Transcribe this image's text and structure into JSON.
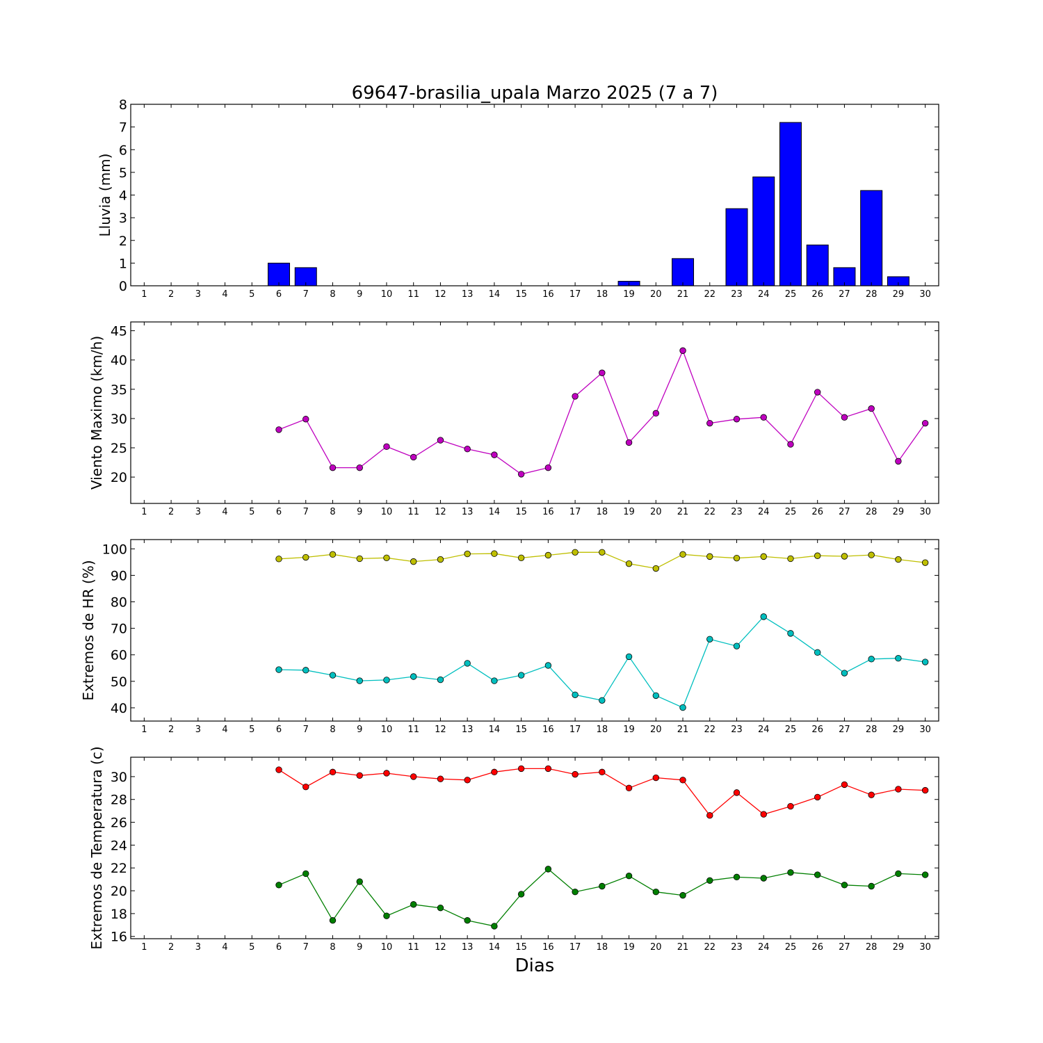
{
  "title": "69647-brasilia_upala Marzo 2025  (7 a 7)",
  "xlabel": "Dias",
  "days": [
    1,
    2,
    3,
    4,
    5,
    6,
    7,
    8,
    9,
    10,
    11,
    12,
    13,
    14,
    15,
    16,
    17,
    18,
    19,
    20,
    21,
    22,
    23,
    24,
    25,
    26,
    27,
    28,
    29,
    30
  ],
  "chart_data": [
    {
      "type": "bar",
      "ylabel": "Lluvia (mm)",
      "ylim": [
        0,
        8
      ],
      "yticks": [
        0,
        1,
        2,
        3,
        4,
        5,
        6,
        7,
        8
      ],
      "colors": {
        "bar": "#0000ff"
      },
      "series": [
        {
          "values": [
            null,
            null,
            null,
            null,
            null,
            1.0,
            0.8,
            0,
            0,
            0,
            0,
            0,
            0,
            0,
            0,
            0,
            0,
            0,
            0.2,
            0,
            1.2,
            0,
            3.4,
            4.8,
            7.2,
            1.8,
            0.8,
            4.2,
            0.4,
            null
          ]
        }
      ]
    },
    {
      "type": "line",
      "ylabel": "Viento Maximo (km/h)",
      "ylim": [
        15.5,
        46.5
      ],
      "yticks": [
        20,
        25,
        30,
        35,
        40,
        45
      ],
      "series": [
        {
          "color": "#bf00bf",
          "values": [
            null,
            null,
            null,
            null,
            null,
            28.1,
            29.9,
            21.6,
            21.6,
            25.2,
            23.4,
            26.3,
            24.8,
            23.8,
            20.5,
            21.6,
            33.8,
            37.8,
            25.9,
            30.9,
            41.6,
            29.2,
            29.9,
            30.2,
            25.6,
            34.5,
            30.2,
            31.7,
            22.7,
            29.2
          ]
        }
      ]
    },
    {
      "type": "line",
      "ylabel": "Extremos de HR (%)",
      "ylim": [
        35,
        103.5
      ],
      "yticks": [
        40,
        50,
        60,
        70,
        80,
        90,
        100
      ],
      "series": [
        {
          "color": "#bfbf00",
          "values": [
            null,
            null,
            null,
            null,
            null,
            96.2,
            96.8,
            97.9,
            96.3,
            96.6,
            95.2,
            96.0,
            98.1,
            98.2,
            96.6,
            97.6,
            98.7,
            98.7,
            94.4,
            92.6,
            97.9,
            97.1,
            96.5,
            97.1,
            96.3,
            97.4,
            97.2,
            97.7,
            96.0,
            94.8
          ]
        },
        {
          "color": "#00bfbf",
          "values": [
            null,
            null,
            null,
            null,
            null,
            54.4,
            54.2,
            52.3,
            50.2,
            50.5,
            51.8,
            50.6,
            56.8,
            50.2,
            52.3,
            56.0,
            44.9,
            42.8,
            59.3,
            44.6,
            40.1,
            65.9,
            63.3,
            74.4,
            68.1,
            60.9,
            53.1,
            58.4,
            58.7,
            57.3
          ]
        }
      ]
    },
    {
      "type": "line",
      "ylabel": "Extremos de Temperatura (c)",
      "ylim": [
        15.8,
        31.7
      ],
      "yticks": [
        16,
        18,
        20,
        22,
        24,
        26,
        28,
        30
      ],
      "series": [
        {
          "color": "#ff0000",
          "values": [
            null,
            null,
            null,
            null,
            null,
            30.6,
            29.1,
            30.4,
            30.1,
            30.3,
            30.0,
            29.8,
            29.7,
            30.4,
            30.7,
            30.7,
            30.2,
            30.4,
            29.0,
            29.9,
            29.7,
            26.6,
            28.6,
            26.7,
            27.4,
            28.2,
            29.3,
            28.4,
            28.9,
            28.8
          ]
        },
        {
          "color": "#007f00",
          "values": [
            null,
            null,
            null,
            null,
            null,
            20.5,
            21.5,
            17.4,
            20.8,
            17.8,
            18.8,
            18.5,
            17.4,
            16.9,
            19.7,
            21.9,
            19.9,
            20.4,
            21.3,
            19.9,
            19.6,
            20.9,
            21.2,
            21.1,
            21.6,
            21.4,
            20.5,
            20.4,
            21.5,
            21.4
          ]
        }
      ]
    }
  ]
}
